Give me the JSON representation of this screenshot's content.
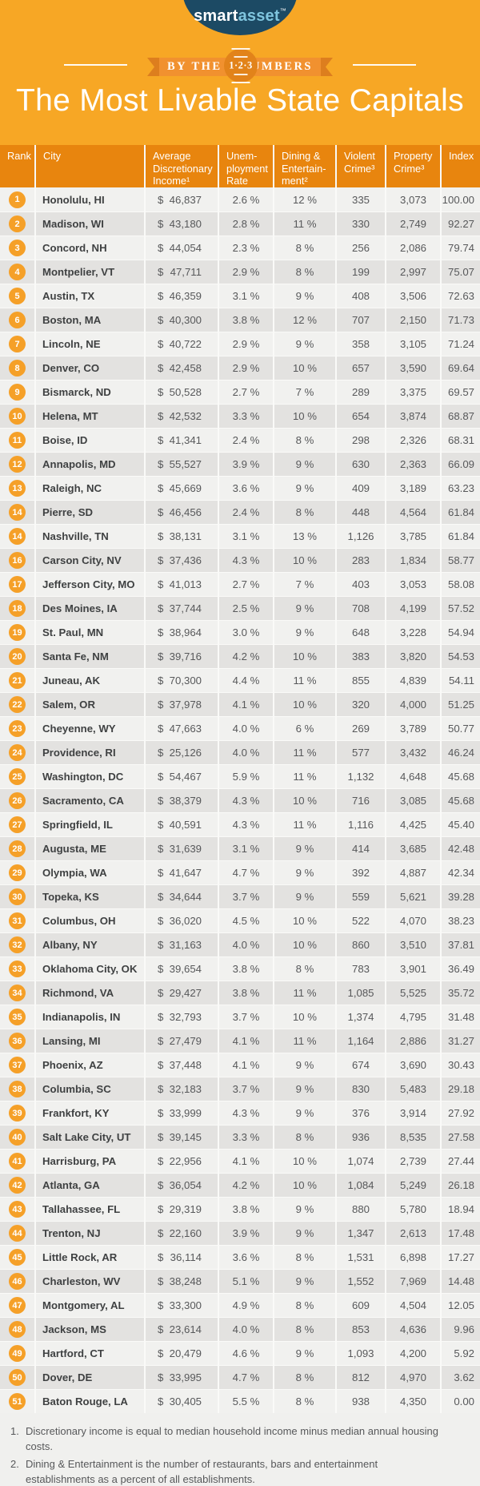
{
  "logo": {
    "smart": "smart",
    "asset": "asset",
    "tm": "™"
  },
  "banner": {
    "left_label": "BY THE",
    "circle_label": "1·2·3",
    "right_label": "NUMBERS"
  },
  "title": "The Most Livable State Capitals",
  "currency_symbol": "$",
  "chart_data": {
    "type": "table",
    "title": "The Most Livable State Capitals",
    "columns": [
      "Rank",
      "City",
      "Average Discretionary Income",
      "Unemployment Rate",
      "Dining & Entertainment",
      "Violent Crime",
      "Property Crime",
      "Index"
    ],
    "header_lines": [
      "Rank",
      "City",
      "Average\nDiscretionary\nIncome¹",
      "Unem-\nployment\nRate",
      "Dining &\nEntertain-\nment²",
      "Violent\nCrime³",
      "Property\nCrime³",
      "Index"
    ],
    "rows": [
      [
        "1",
        "Honolulu, HI",
        "46,837",
        "2.6 %",
        "12 %",
        "335",
        "3,073",
        "100.00"
      ],
      [
        "2",
        "Madison, WI",
        "43,180",
        "2.8 %",
        "11 %",
        "330",
        "2,749",
        "92.27"
      ],
      [
        "3",
        "Concord, NH",
        "44,054",
        "2.3 %",
        "8 %",
        "256",
        "2,086",
        "79.74"
      ],
      [
        "4",
        "Montpelier, VT",
        "47,711",
        "2.9 %",
        "8 %",
        "199",
        "2,997",
        "75.07"
      ],
      [
        "5",
        "Austin, TX",
        "46,359",
        "3.1 %",
        "9 %",
        "408",
        "3,506",
        "72.63"
      ],
      [
        "6",
        "Boston, MA",
        "40,300",
        "3.8 %",
        "12 %",
        "707",
        "2,150",
        "71.73"
      ],
      [
        "7",
        "Lincoln, NE",
        "40,722",
        "2.9 %",
        "9 %",
        "358",
        "3,105",
        "71.24"
      ],
      [
        "8",
        "Denver, CO",
        "42,458",
        "2.9 %",
        "10 %",
        "657",
        "3,590",
        "69.64"
      ],
      [
        "9",
        "Bismarck, ND",
        "50,528",
        "2.7 %",
        "7 %",
        "289",
        "3,375",
        "69.57"
      ],
      [
        "10",
        "Helena, MT",
        "42,532",
        "3.3 %",
        "10 %",
        "654",
        "3,874",
        "68.87"
      ],
      [
        "11",
        "Boise, ID",
        "41,341",
        "2.4 %",
        "8 %",
        "298",
        "2,326",
        "68.31"
      ],
      [
        "12",
        "Annapolis, MD",
        "55,527",
        "3.9 %",
        "9 %",
        "630",
        "2,363",
        "66.09"
      ],
      [
        "13",
        "Raleigh, NC",
        "45,669",
        "3.6 %",
        "9 %",
        "409",
        "3,189",
        "63.23"
      ],
      [
        "14",
        "Pierre, SD",
        "46,456",
        "2.4 %",
        "8 %",
        "448",
        "4,564",
        "61.84"
      ],
      [
        "14",
        "Nashville, TN",
        "38,131",
        "3.1 %",
        "13 %",
        "1,126",
        "3,785",
        "61.84"
      ],
      [
        "16",
        "Carson City, NV",
        "37,436",
        "4.3 %",
        "10 %",
        "283",
        "1,834",
        "58.77"
      ],
      [
        "17",
        "Jefferson City, MO",
        "41,013",
        "2.7 %",
        "7 %",
        "403",
        "3,053",
        "58.08"
      ],
      [
        "18",
        "Des Moines, IA",
        "37,744",
        "2.5 %",
        "9 %",
        "708",
        "4,199",
        "57.52"
      ],
      [
        "19",
        "St. Paul, MN",
        "38,964",
        "3.0 %",
        "9 %",
        "648",
        "3,228",
        "54.94"
      ],
      [
        "20",
        "Santa Fe, NM",
        "39,716",
        "4.2 %",
        "10 %",
        "383",
        "3,820",
        "54.53"
      ],
      [
        "21",
        "Juneau, AK",
        "70,300",
        "4.4 %",
        "11 %",
        "855",
        "4,839",
        "54.11"
      ],
      [
        "22",
        "Salem, OR",
        "37,978",
        "4.1 %",
        "10 %",
        "320",
        "4,000",
        "51.25"
      ],
      [
        "23",
        "Cheyenne, WY",
        "47,663",
        "4.0 %",
        "6 %",
        "269",
        "3,789",
        "50.77"
      ],
      [
        "24",
        "Providence, RI",
        "25,126",
        "4.0 %",
        "11 %",
        "577",
        "3,432",
        "46.24"
      ],
      [
        "25",
        "Washington, DC",
        "54,467",
        "5.9 %",
        "11 %",
        "1,132",
        "4,648",
        "45.68"
      ],
      [
        "26",
        "Sacramento, CA",
        "38,379",
        "4.3 %",
        "10 %",
        "716",
        "3,085",
        "45.68"
      ],
      [
        "27",
        "Springfield, IL",
        "40,591",
        "4.3 %",
        "11 %",
        "1,116",
        "4,425",
        "45.40"
      ],
      [
        "28",
        "Augusta, ME",
        "31,639",
        "3.1 %",
        "9 %",
        "414",
        "3,685",
        "42.48"
      ],
      [
        "29",
        "Olympia, WA",
        "41,647",
        "4.7 %",
        "9 %",
        "392",
        "4,887",
        "42.34"
      ],
      [
        "30",
        "Topeka, KS",
        "34,644",
        "3.7 %",
        "9 %",
        "559",
        "5,621",
        "39.28"
      ],
      [
        "31",
        "Columbus, OH",
        "36,020",
        "4.5 %",
        "10 %",
        "522",
        "4,070",
        "38.23"
      ],
      [
        "32",
        "Albany, NY",
        "31,163",
        "4.0 %",
        "10 %",
        "860",
        "3,510",
        "37.81"
      ],
      [
        "33",
        "Oklahoma City, OK",
        "39,654",
        "3.8 %",
        "8 %",
        "783",
        "3,901",
        "36.49"
      ],
      [
        "34",
        "Richmond, VA",
        "29,427",
        "3.8 %",
        "11 %",
        "1,085",
        "5,525",
        "35.72"
      ],
      [
        "35",
        "Indianapolis, IN",
        "32,793",
        "3.7 %",
        "10 %",
        "1,374",
        "4,795",
        "31.48"
      ],
      [
        "36",
        "Lansing, MI",
        "27,479",
        "4.1 %",
        "11 %",
        "1,164",
        "2,886",
        "31.27"
      ],
      [
        "37",
        "Phoenix, AZ",
        "37,448",
        "4.1 %",
        "9 %",
        "674",
        "3,690",
        "30.43"
      ],
      [
        "38",
        "Columbia, SC",
        "32,183",
        "3.7 %",
        "9 %",
        "830",
        "5,483",
        "29.18"
      ],
      [
        "39",
        "Frankfort, KY",
        "33,999",
        "4.3 %",
        "9 %",
        "376",
        "3,914",
        "27.92"
      ],
      [
        "40",
        "Salt Lake City, UT",
        "39,145",
        "3.3 %",
        "8 %",
        "936",
        "8,535",
        "27.58"
      ],
      [
        "41",
        "Harrisburg, PA",
        "22,956",
        "4.1 %",
        "10 %",
        "1,074",
        "2,739",
        "27.44"
      ],
      [
        "42",
        "Atlanta, GA",
        "36,054",
        "4.2 %",
        "10 %",
        "1,084",
        "5,249",
        "26.18"
      ],
      [
        "43",
        "Tallahassee, FL",
        "29,319",
        "3.8 %",
        "9 %",
        "880",
        "5,780",
        "18.94"
      ],
      [
        "44",
        "Trenton, NJ",
        "22,160",
        "3.9 %",
        "9 %",
        "1,347",
        "2,613",
        "17.48"
      ],
      [
        "45",
        "Little Rock, AR",
        "36,114",
        "3.6 %",
        "8 %",
        "1,531",
        "6,898",
        "17.27"
      ],
      [
        "46",
        "Charleston, WV",
        "38,248",
        "5.1 %",
        "9 %",
        "1,552",
        "7,969",
        "14.48"
      ],
      [
        "47",
        "Montgomery, AL",
        "33,300",
        "4.9 %",
        "8 %",
        "609",
        "4,504",
        "12.05"
      ],
      [
        "48",
        "Jackson, MS",
        "23,614",
        "4.0 %",
        "8 %",
        "853",
        "4,636",
        "9.96"
      ],
      [
        "49",
        "Hartford, CT",
        "20,479",
        "4.6 %",
        "9 %",
        "1,093",
        "4,200",
        "5.92"
      ],
      [
        "50",
        "Dover, DE",
        "33,995",
        "4.7 %",
        "8 %",
        "812",
        "4,970",
        "3.62"
      ],
      [
        "51",
        "Baton Rouge, LA",
        "30,405",
        "5.5 %",
        "8 %",
        "938",
        "4,350",
        "0.00"
      ]
    ]
  },
  "footnotes": [
    {
      "num": "1.",
      "text": "Discretionary income is equal to median household income minus median annual housing costs."
    },
    {
      "num": "2.",
      "text": "Dining & Entertainment is the number of restaurants, bars and entertainment establishments as a percent of all establishments."
    },
    {
      "num": "3.",
      "text": "These are the rates of violent and property crime per 100,000 residents."
    }
  ],
  "colors": {
    "background": "#F7A725",
    "table_header": "#E8850E",
    "ribbon": "#F1912F",
    "ribbon_fold": "#DD7E1E",
    "circle": "#E2831A",
    "logo_navy": "#1C4A64",
    "logo_asset_blue": "#7FC5DE",
    "rank_badge": "#F5A028",
    "row_light": "#F1F1EF",
    "row_dark": "#E3E2E0",
    "city_text": "#3F4142",
    "body_text": "#57585A"
  }
}
